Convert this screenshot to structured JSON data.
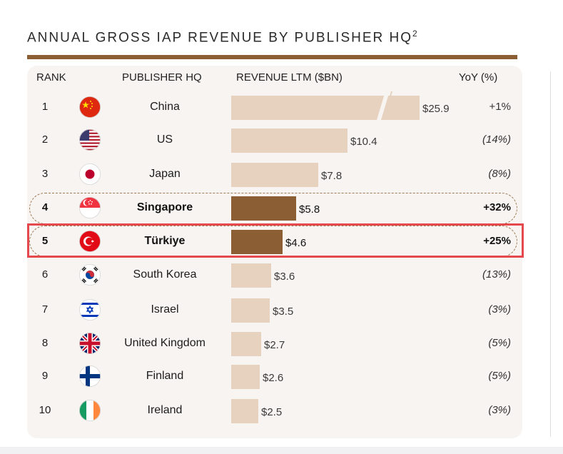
{
  "title": "ANNUAL GROSS IAP REVENUE BY PUBLISHER HQ",
  "title_superscript": "2",
  "headers": {
    "rank": "RANK",
    "publisher_hq": "PUBLISHER HQ",
    "revenue": "REVENUE LTM ($BN)",
    "yoy": "YoY (%)"
  },
  "colors": {
    "bar": "#e6d2bf",
    "bar_highlight": "#8b5e34",
    "title_rule": "#8b5e34",
    "selection_outline": "#e5484d"
  },
  "rows": [
    {
      "rank": "1",
      "country": "China",
      "flag": "china-flag-icon",
      "value_label": "$25.9",
      "yoy": "+1%"
    },
    {
      "rank": "2",
      "country": "US",
      "flag": "us-flag-icon",
      "value_label": "$10.4",
      "yoy": "(14%)"
    },
    {
      "rank": "3",
      "country": "Japan",
      "flag": "japan-flag-icon",
      "value_label": "$7.8",
      "yoy": "(8%)"
    },
    {
      "rank": "4",
      "country": "Singapore",
      "flag": "singapore-flag-icon",
      "value_label": "$5.8",
      "yoy": "+32%"
    },
    {
      "rank": "5",
      "country": "Türkiye",
      "flag": "turkiye-flag-icon",
      "value_label": "$4.6",
      "yoy": "+25%"
    },
    {
      "rank": "6",
      "country": "South Korea",
      "flag": "south-korea-flag-icon",
      "value_label": "$3.6",
      "yoy": "(13%)"
    },
    {
      "rank": "7",
      "country": "Israel",
      "flag": "israel-flag-icon",
      "value_label": "$3.5",
      "yoy": "(3%)"
    },
    {
      "rank": "8",
      "country": "United Kingdom",
      "flag": "uk-flag-icon",
      "value_label": "$2.7",
      "yoy": "(5%)"
    },
    {
      "rank": "9",
      "country": "Finland",
      "flag": "finland-flag-icon",
      "value_label": "$2.6",
      "yoy": "(5%)"
    },
    {
      "rank": "10",
      "country": "Ireland",
      "flag": "ireland-flag-icon",
      "value_label": "$2.5",
      "yoy": "(3%)"
    }
  ],
  "chart_data": {
    "type": "bar",
    "orientation": "horizontal",
    "title": "ANNUAL GROSS IAP REVENUE BY PUBLISHER HQ",
    "categories": [
      "China",
      "US",
      "Japan",
      "Singapore",
      "Türkiye",
      "South Korea",
      "Israel",
      "United Kingdom",
      "Finland",
      "Ireland"
    ],
    "values": [
      25.9,
      10.4,
      7.8,
      5.8,
      4.6,
      3.6,
      3.5,
      2.7,
      2.6,
      2.5
    ],
    "yoy_percent": [
      1,
      -14,
      -8,
      32,
      25,
      -13,
      -3,
      -5,
      -5,
      -3
    ],
    "highlighted": [
      "Singapore",
      "Türkiye"
    ],
    "axis_break": "China",
    "grid": false
  }
}
